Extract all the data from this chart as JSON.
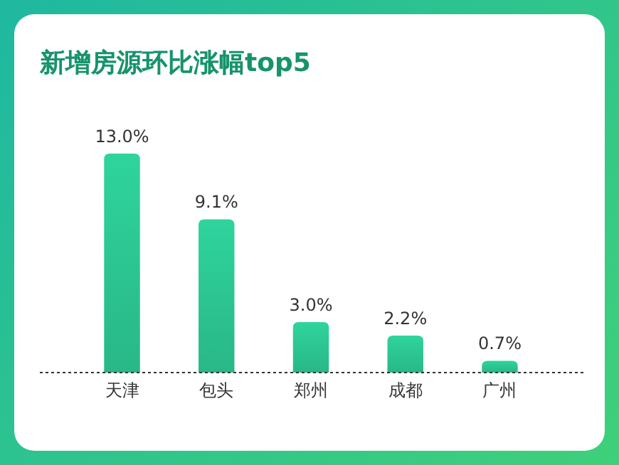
{
  "chart_data": {
    "type": "bar",
    "title": "新增房源环比涨幅top5",
    "categories": [
      "天津",
      "包头",
      "郑州",
      "成都",
      "广州"
    ],
    "values": [
      13.0,
      9.1,
      3.0,
      2.2,
      0.7
    ],
    "value_labels": [
      "13.0%",
      "9.1%",
      "3.0%",
      "2.2%",
      "0.7%"
    ],
    "color": "#2cc592"
  }
}
